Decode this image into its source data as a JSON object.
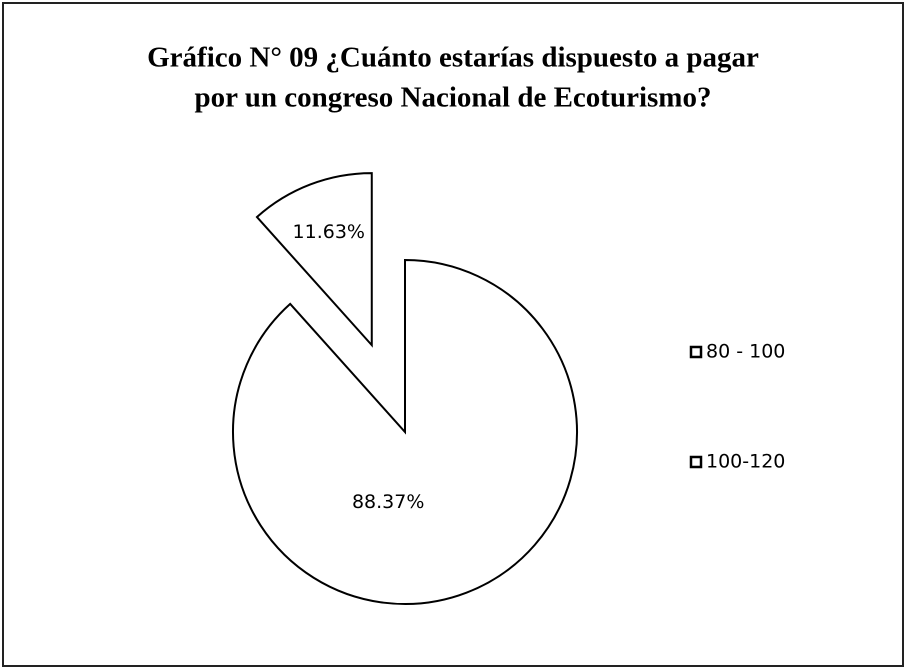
{
  "chart_data": {
    "type": "pie",
    "title": [
      "Gráfico N° 09 ¿Cuánto estarías dispuesto a pagar",
      "por un congreso Nacional de Ecoturismo?"
    ],
    "categories": [
      "80 - 100",
      "100-120"
    ],
    "values": [
      88.37,
      11.63
    ],
    "value_labels": [
      "88.37%",
      "11.63%"
    ],
    "colors": [
      "#ffffff",
      "#ffffff"
    ],
    "legend": "right"
  }
}
